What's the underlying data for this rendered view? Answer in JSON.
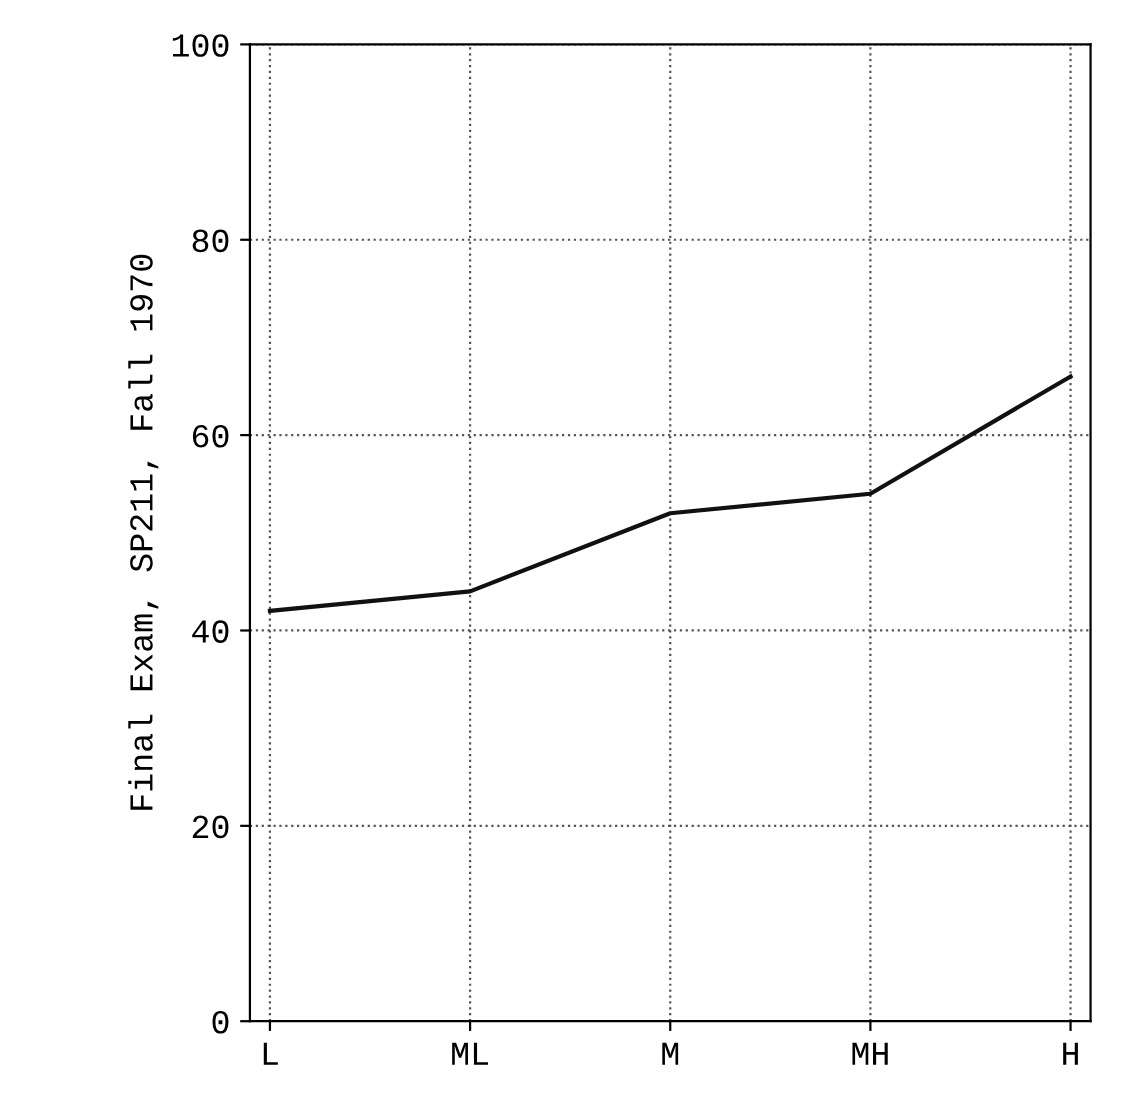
{
  "chart_data": {
    "type": "line",
    "ylabel": "Final Exam, SP211, Fall 1970",
    "categories": [
      "L",
      "ML",
      "M",
      "MH",
      "H"
    ],
    "series": [
      {
        "color": "#111111",
        "values": [
          42,
          44,
          52,
          54,
          66
        ]
      }
    ],
    "ylim": [
      0,
      100
    ],
    "yticks": [
      0,
      20,
      40,
      60,
      80,
      100
    ],
    "grid": true,
    "marker": "none",
    "line_style": "solid"
  }
}
